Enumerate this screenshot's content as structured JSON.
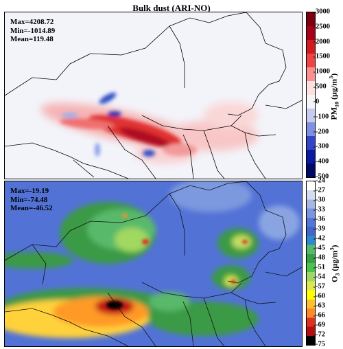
{
  "title": "Bulk dust (ARI-NO)",
  "top_panel": {
    "stats": {
      "max": "Max=4208.72",
      "min": "Min=-1014.89",
      "mean": "Mean=119.48"
    },
    "colorbar": {
      "ticks": [
        "3000",
        "2500",
        "2000",
        "1500",
        "1000",
        "500",
        "0",
        "-100",
        "-200",
        "-300",
        "-400",
        "-500"
      ],
      "label_base": "PM",
      "label_sub": "10",
      "label_unit": " (μg/m",
      "label_sup": "3",
      "label_close": ")"
    }
  },
  "bottom_panel": {
    "stats": {
      "max": "Max=-19.19",
      "min": "Min=-74.48",
      "mean": "Mean=-46.52"
    },
    "colorbar": {
      "ticks": [
        "-24",
        "-27",
        "-30",
        "-33",
        "-36",
        "-39",
        "-42",
        "-45",
        "-48",
        "-51",
        "-54",
        "-57",
        "-60",
        "-63",
        "-66",
        "-69",
        "-72",
        "-75"
      ],
      "label_base": "O",
      "label_sub": "3",
      "label_unit": " (μg/m",
      "label_sup": "3",
      "label_close": ")"
    }
  },
  "colors": {
    "pm_scale": [
      "#7a0010",
      "#a80018",
      "#d01c1c",
      "#f04444",
      "#fa9090",
      "#fde0e0",
      "#f5f5f8",
      "#c5ccf0",
      "#8090e0",
      "#3045c8",
      "#0a1aa0",
      "#000a66"
    ],
    "o3_scale": [
      "#ffffff",
      "#d4dcef",
      "#a7b7e5",
      "#7a94dd",
      "#5575d9",
      "#3f66c8",
      "#2e8ad0",
      "#58b96a",
      "#37a047",
      "#4cc34c",
      "#9fd865",
      "#dde84e",
      "#ffff00",
      "#ffc030",
      "#ff8a25",
      "#e03020",
      "#b01010",
      "#000000"
    ]
  }
}
